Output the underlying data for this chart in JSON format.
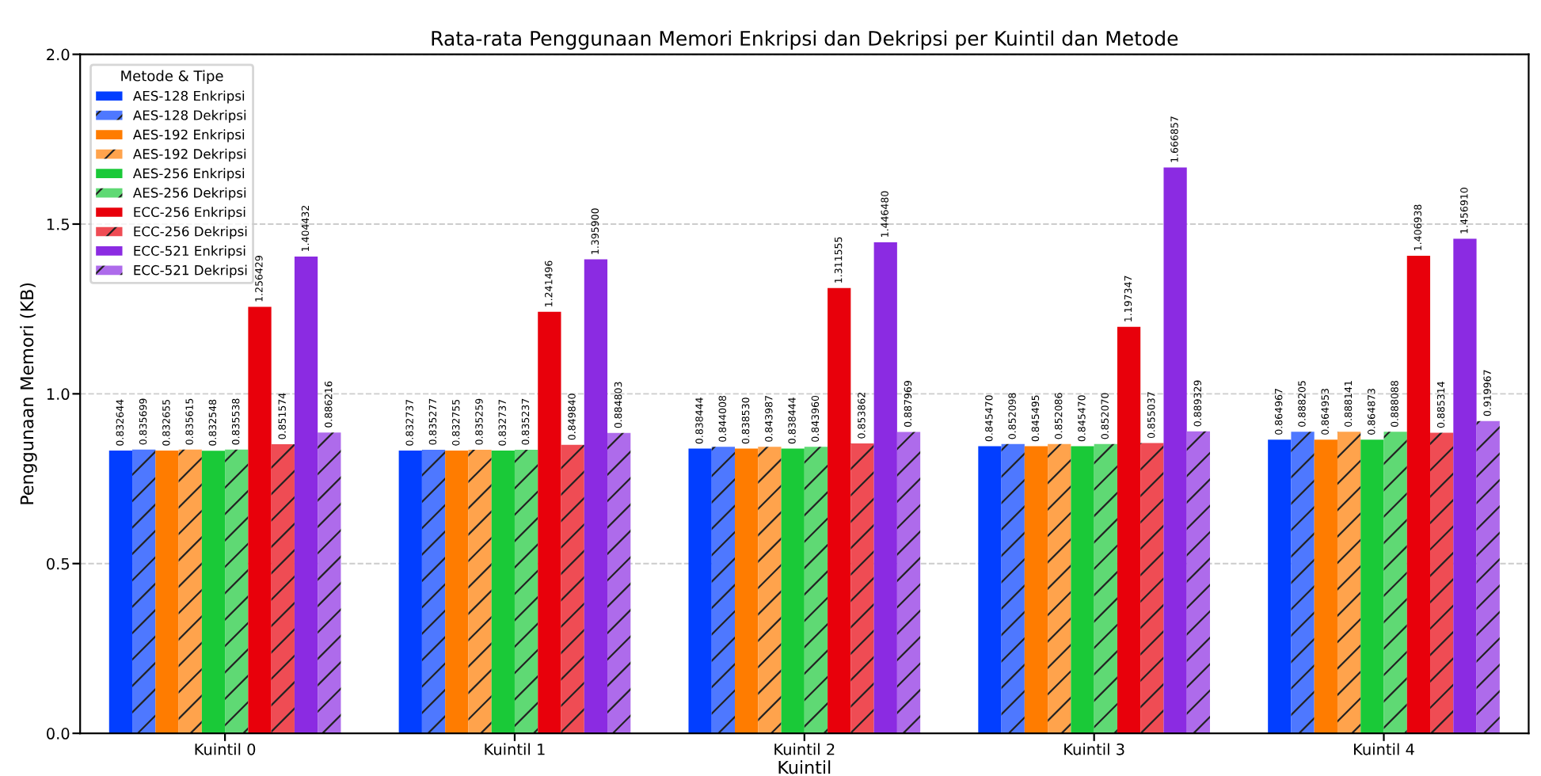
{
  "chart_data": {
    "type": "bar",
    "title": "Rata-rata Penggunaan Memori Enkripsi dan Dekripsi per Kuintil dan Metode",
    "xlabel": "Kuintil",
    "ylabel": "Penggunaan Memori (KB)",
    "legend_title": "Metode & Tipe",
    "categories": [
      "Kuintil 0",
      "Kuintil 1",
      "Kuintil 2",
      "Kuintil 3",
      "Kuintil 4"
    ],
    "series": [
      {
        "name": "AES-128 Enkripsi",
        "color": "#023eff",
        "values": [
          0.832644,
          0.832737,
          0.838444,
          0.84547,
          0.864967
        ],
        "value_labels": [
          "0.832644",
          "0.832737",
          "0.838444",
          "0.845470",
          "0.864967"
        ]
      },
      {
        "name": "AES-128 Dekripsi",
        "color": "#4e78ff",
        "values": [
          0.835699,
          0.835277,
          0.844008,
          0.852098,
          0.888205
        ],
        "value_labels": [
          "0.835699",
          "0.835277",
          "0.844008",
          "0.852098",
          "0.888205"
        ]
      },
      {
        "name": "AES-192 Enkripsi",
        "color": "#ff7c00",
        "values": [
          0.832655,
          0.832755,
          0.83853,
          0.845495,
          0.864953
        ],
        "value_labels": [
          "0.832655",
          "0.832755",
          "0.838530",
          "0.845495",
          "0.864953"
        ]
      },
      {
        "name": "AES-192 Dekripsi",
        "color": "#ffa34c",
        "values": [
          0.835615,
          0.835259,
          0.843987,
          0.852086,
          0.888141
        ],
        "value_labels": [
          "0.835615",
          "0.835259",
          "0.843987",
          "0.852086",
          "0.888141"
        ]
      },
      {
        "name": "AES-256 Enkripsi",
        "color": "#1ac938",
        "values": [
          0.832548,
          0.832737,
          0.838444,
          0.84547,
          0.864873
        ],
        "value_labels": [
          "0.832548",
          "0.832737",
          "0.838444",
          "0.845470",
          "0.864873"
        ]
      },
      {
        "name": "AES-256 Dekripsi",
        "color": "#5fd974",
        "values": [
          0.835538,
          0.835237,
          0.84396,
          0.85207,
          0.888088
        ],
        "value_labels": [
          "0.835538",
          "0.835237",
          "0.843960",
          "0.852070",
          "0.888088"
        ]
      },
      {
        "name": "ECC-256 Enkripsi",
        "color": "#e8000b",
        "values": [
          1.256429,
          1.241496,
          1.311555,
          1.197347,
          1.406938
        ],
        "value_labels": [
          "1.256429",
          "1.241496",
          "1.311555",
          "1.197347",
          "1.406938"
        ]
      },
      {
        "name": "ECC-256 Dekripsi",
        "color": "#ef4c54",
        "values": [
          0.851574,
          0.84984,
          0.853862,
          0.855037,
          0.885314
        ],
        "value_labels": [
          "0.851574",
          "0.849840",
          "0.853862",
          "0.855037",
          "0.885314"
        ]
      },
      {
        "name": "ECC-521 Enkripsi",
        "color": "#8b2be2",
        "values": [
          1.404432,
          1.3959,
          1.44648,
          1.666857,
          1.45691
        ],
        "value_labels": [
          "1.404432",
          "1.395900",
          "1.446480",
          "1.666857",
          "1.456910"
        ]
      },
      {
        "name": "ECC-521 Dekripsi",
        "color": "#ae6beb",
        "values": [
          0.886216,
          0.884803,
          0.887969,
          0.889329,
          0.919967
        ],
        "value_labels": [
          "0.886216",
          "0.884803",
          "0.887969",
          "0.889329",
          "0.919967"
        ]
      }
    ],
    "ylim": [
      0,
      2.0
    ],
    "yticks": [
      {
        "value": 0,
        "label": "0.0"
      },
      {
        "value": 0.5,
        "label": "0.5"
      },
      {
        "value": 1.0,
        "label": "1.0"
      },
      {
        "value": 1.5,
        "label": "1.5"
      },
      {
        "value": 2.0,
        "label": "2.0"
      }
    ],
    "grid": "y",
    "legend": "top left"
  }
}
